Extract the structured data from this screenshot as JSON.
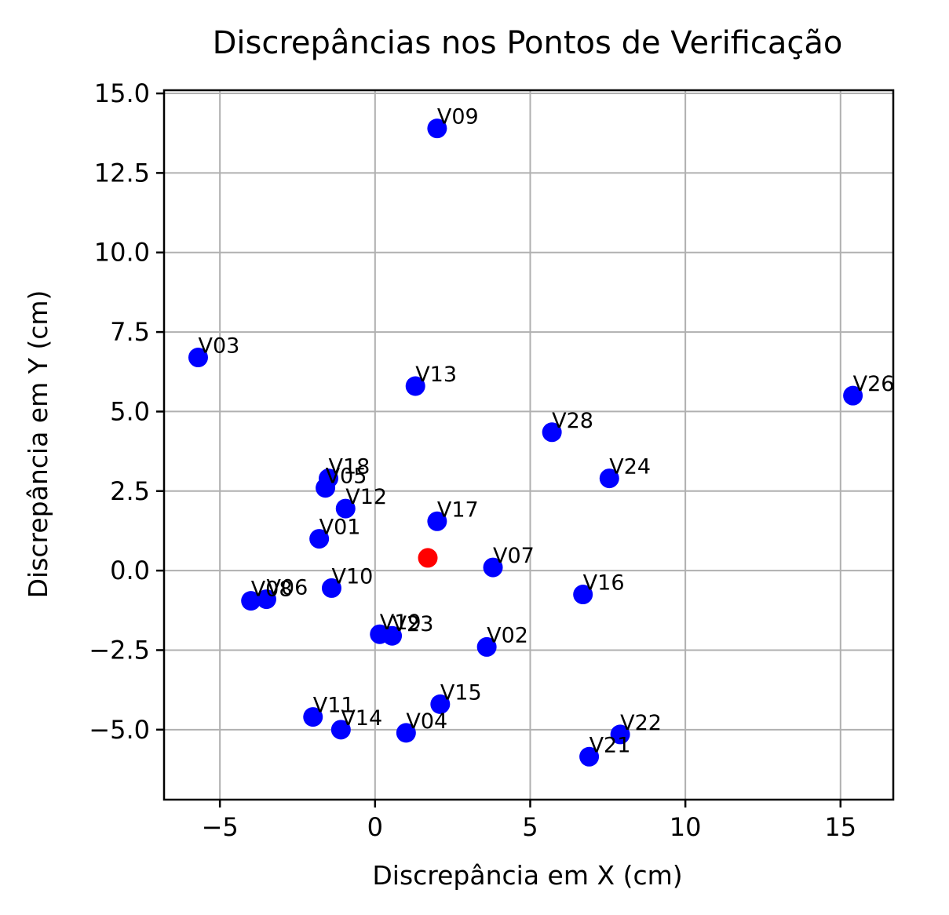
{
  "chart_data": {
    "type": "scatter",
    "title": "Discrepâncias nos Pontos de Verificação",
    "xlabel": "Discrepância em X (cm)",
    "ylabel": "Discrepância em Y (cm)",
    "xlim": [
      -6.8,
      16.7
    ],
    "ylim": [
      -7.2,
      15.1
    ],
    "xticks": [
      -5,
      0,
      5,
      10,
      15
    ],
    "xtick_labels": [
      "−5",
      "0",
      "5",
      "10",
      "15"
    ],
    "yticks": [
      -5.0,
      -2.5,
      0.0,
      2.5,
      5.0,
      7.5,
      10.0,
      12.5,
      15.0
    ],
    "ytick_labels": [
      "−5.0",
      "−2.5",
      "0.0",
      "2.5",
      "5.0",
      "7.5",
      "10.0",
      "12.5",
      "15.0"
    ],
    "grid": true,
    "series": [
      {
        "color": "#0000ff",
        "points": [
          {
            "label": "V01",
            "x": -1.8,
            "y": 1.0
          },
          {
            "label": "V02",
            "x": 3.6,
            "y": -2.4
          },
          {
            "label": "V03",
            "x": -5.7,
            "y": 6.7
          },
          {
            "label": "V04",
            "x": 1.0,
            "y": -5.1
          },
          {
            "label": "V05",
            "x": -1.6,
            "y": 2.6
          },
          {
            "label": "V06",
            "x": -3.5,
            "y": -0.9
          },
          {
            "label": "V07",
            "x": 3.8,
            "y": 0.1
          },
          {
            "label": "V08",
            "x": -4.0,
            "y": -0.95
          },
          {
            "label": "V09",
            "x": 2.0,
            "y": 13.9
          },
          {
            "label": "V10",
            "x": -1.4,
            "y": -0.55
          },
          {
            "label": "V11",
            "x": -2.0,
            "y": -4.6
          },
          {
            "label": "V12",
            "x": -0.95,
            "y": 1.95
          },
          {
            "label": "V13",
            "x": 1.3,
            "y": 5.8
          },
          {
            "label": "V14",
            "x": -1.1,
            "y": -5.0
          },
          {
            "label": "V15",
            "x": 2.1,
            "y": -4.2
          },
          {
            "label": "V16",
            "x": 6.7,
            "y": -0.75
          },
          {
            "label": "V17",
            "x": 2.0,
            "y": 1.55
          },
          {
            "label": "V18",
            "x": -1.5,
            "y": 2.9
          },
          {
            "label": "V19",
            "x": 0.15,
            "y": -2.0
          },
          {
            "label": "V21",
            "x": 6.9,
            "y": -5.85
          },
          {
            "label": "V22",
            "x": 7.9,
            "y": -5.15
          },
          {
            "label": "V23",
            "x": 0.55,
            "y": -2.05
          },
          {
            "label": "V24",
            "x": 7.55,
            "y": 2.9
          },
          {
            "label": "V26",
            "x": 15.4,
            "y": 5.5
          },
          {
            "label": "V28",
            "x": 5.7,
            "y": 4.35
          }
        ]
      },
      {
        "color": "#ff0000",
        "points": [
          {
            "label": "",
            "x": 1.7,
            "y": 0.4
          }
        ]
      }
    ]
  }
}
